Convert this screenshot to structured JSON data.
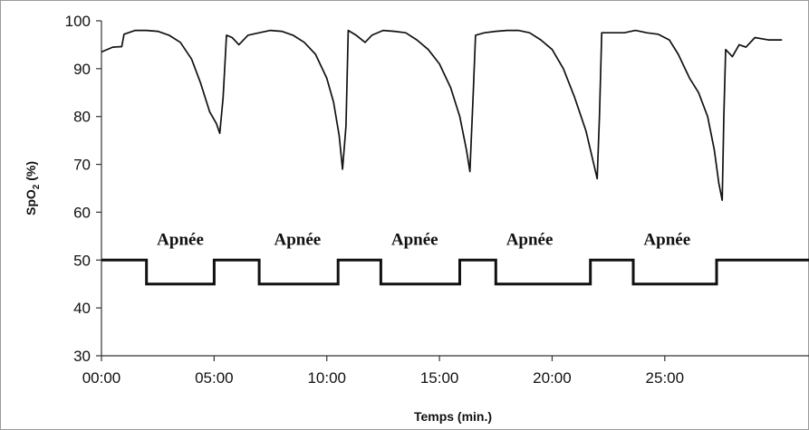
{
  "chart_data": {
    "type": "line",
    "title": "",
    "xlabel": "Temps (min.)",
    "ylabel": {
      "main": "SpO",
      "sub": "2",
      "rest": " (%)"
    },
    "xlim": [
      0,
      31.4
    ],
    "ylim": [
      30,
      100
    ],
    "x_ticks": [
      {
        "value": 0,
        "label": "00:00"
      },
      {
        "value": 5,
        "label": "05:00"
      },
      {
        "value": 10,
        "label": "10:00"
      },
      {
        "value": 15,
        "label": "15:00"
      },
      {
        "value": 20,
        "label": "20:00"
      },
      {
        "value": 25,
        "label": "25:00"
      }
    ],
    "y_ticks": [
      30,
      40,
      50,
      60,
      70,
      80,
      90,
      100
    ],
    "grid": false,
    "colors": {
      "line": "#111111",
      "axis": "#333333"
    },
    "series": [
      {
        "values": [
          [
            0.0,
            93.5
          ],
          [
            0.5,
            94.5
          ],
          [
            0.9,
            94.6
          ],
          [
            1.0,
            97.2
          ],
          [
            1.5,
            98.0
          ],
          [
            2.0,
            98.0
          ],
          [
            2.5,
            97.8
          ],
          [
            3.0,
            97.0
          ],
          [
            3.5,
            95.5
          ],
          [
            4.0,
            92.0
          ],
          [
            4.4,
            87.0
          ],
          [
            4.8,
            81.0
          ],
          [
            5.1,
            78.5
          ],
          [
            5.25,
            76.5
          ],
          [
            5.4,
            84.0
          ],
          [
            5.55,
            97.0
          ],
          [
            5.8,
            96.5
          ],
          [
            6.1,
            95.0
          ],
          [
            6.5,
            97.0
          ],
          [
            7.0,
            97.5
          ],
          [
            7.5,
            98.0
          ],
          [
            8.0,
            97.8
          ],
          [
            8.5,
            97.0
          ],
          [
            9.0,
            95.5
          ],
          [
            9.5,
            93.0
          ],
          [
            10.0,
            88.0
          ],
          [
            10.3,
            83.0
          ],
          [
            10.55,
            76.0
          ],
          [
            10.7,
            69.0
          ],
          [
            10.85,
            78.0
          ],
          [
            10.95,
            98.0
          ],
          [
            11.3,
            97.0
          ],
          [
            11.7,
            95.5
          ],
          [
            12.0,
            97.0
          ],
          [
            12.5,
            98.0
          ],
          [
            13.0,
            97.8
          ],
          [
            13.5,
            97.5
          ],
          [
            14.0,
            96.0
          ],
          [
            14.5,
            94.0
          ],
          [
            15.0,
            91.0
          ],
          [
            15.5,
            86.0
          ],
          [
            15.9,
            80.0
          ],
          [
            16.2,
            73.0
          ],
          [
            16.35,
            68.5
          ],
          [
            16.5,
            85.0
          ],
          [
            16.6,
            97.0
          ],
          [
            17.0,
            97.5
          ],
          [
            17.5,
            97.8
          ],
          [
            18.0,
            98.0
          ],
          [
            18.5,
            98.0
          ],
          [
            19.0,
            97.5
          ],
          [
            19.5,
            96.0
          ],
          [
            20.0,
            94.0
          ],
          [
            20.5,
            90.0
          ],
          [
            21.0,
            84.0
          ],
          [
            21.5,
            77.0
          ],
          [
            21.85,
            70.0
          ],
          [
            22.0,
            67.0
          ],
          [
            22.1,
            80.0
          ],
          [
            22.2,
            97.5
          ],
          [
            22.7,
            97.5
          ],
          [
            23.2,
            97.5
          ],
          [
            23.7,
            98.0
          ],
          [
            24.2,
            97.5
          ],
          [
            24.7,
            97.2
          ],
          [
            25.2,
            96.0
          ],
          [
            25.6,
            93.0
          ],
          [
            25.9,
            90.0
          ],
          [
            26.1,
            88.0
          ],
          [
            26.5,
            85.0
          ],
          [
            26.9,
            80.0
          ],
          [
            27.2,
            73.0
          ],
          [
            27.4,
            66.0
          ],
          [
            27.55,
            62.5
          ],
          [
            27.62,
            80.0
          ],
          [
            27.7,
            94.0
          ],
          [
            28.0,
            92.5
          ],
          [
            28.3,
            95.0
          ],
          [
            28.6,
            94.5
          ],
          [
            29.0,
            96.5
          ],
          [
            29.6,
            96.0
          ],
          [
            30.2,
            96.0
          ]
        ]
      },
      {
        "values": [
          [
            0.0,
            50
          ],
          [
            2.0,
            50
          ],
          [
            2.0,
            45
          ],
          [
            5.0,
            45
          ],
          [
            5.0,
            50
          ],
          [
            7.0,
            50
          ],
          [
            7.0,
            45
          ],
          [
            10.5,
            45
          ],
          [
            10.5,
            50
          ],
          [
            12.4,
            50
          ],
          [
            12.4,
            45
          ],
          [
            15.9,
            45
          ],
          [
            15.9,
            50
          ],
          [
            17.5,
            50
          ],
          [
            17.5,
            45
          ],
          [
            21.7,
            45
          ],
          [
            21.7,
            50
          ],
          [
            23.6,
            50
          ],
          [
            23.6,
            45
          ],
          [
            27.3,
            45
          ],
          [
            27.3,
            50
          ],
          [
            31.4,
            50
          ]
        ]
      }
    ],
    "annotations": [
      {
        "text": "Apnée",
        "x": 3.5,
        "y": 53.2
      },
      {
        "text": "Apnée",
        "x": 8.7,
        "y": 53.2
      },
      {
        "text": "Apnée",
        "x": 13.9,
        "y": 53.2
      },
      {
        "text": "Apnée",
        "x": 19.0,
        "y": 53.2
      },
      {
        "text": "Apnée",
        "x": 25.1,
        "y": 53.2
      }
    ]
  }
}
